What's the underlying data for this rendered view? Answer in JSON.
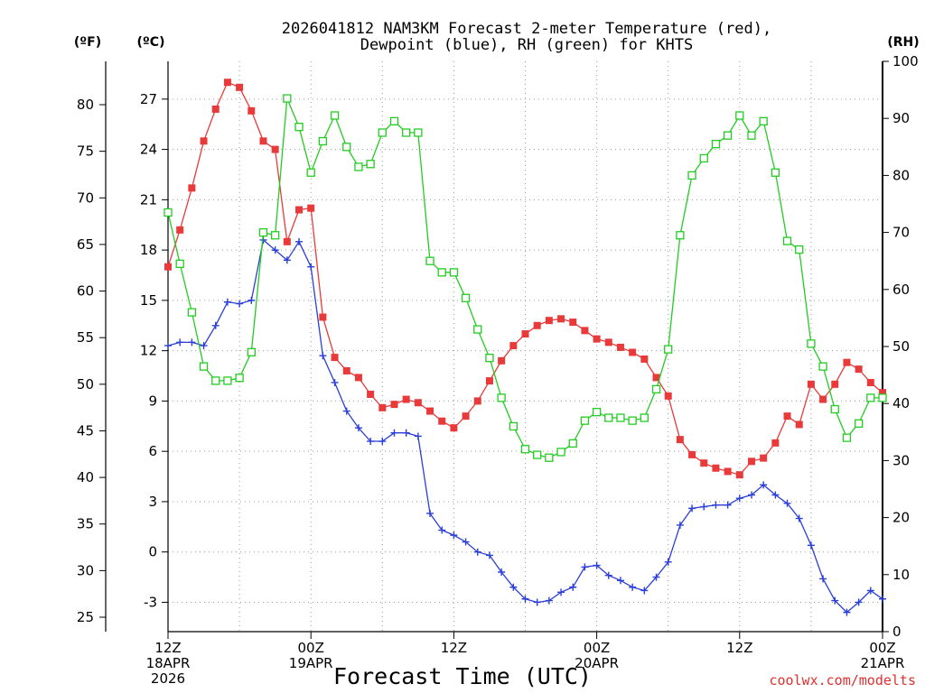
{
  "chart_data": {
    "type": "line",
    "title_line1": "2026041812 NAM3KM Forecast 2-meter Temperature (red),",
    "title_line2": "Dewpoint (blue), RH (green) for KHTS",
    "xlabel": "Forecast Time (UTC)",
    "credit": "coolwx.com/modelts",
    "units": {
      "fahrenheit": "(ºF)",
      "celsius": "(ºC)",
      "rh": "(RH)"
    },
    "x_range_hours": [
      0,
      60
    ],
    "celsius_range": [
      -4.75,
      29.25
    ],
    "rh_range": [
      0,
      100
    ],
    "fahrenheit_ticks": [
      "25",
      "30",
      "35",
      "40",
      "45",
      "50",
      "55",
      "60",
      "65",
      "70",
      "75",
      "80"
    ],
    "celsius_ticks": [
      "-3",
      "0",
      "3",
      "6",
      "9",
      "12",
      "15",
      "18",
      "21",
      "24",
      "27"
    ],
    "rh_ticks": [
      "0",
      "10",
      "20",
      "30",
      "40",
      "50",
      "60",
      "70",
      "80",
      "90",
      "100"
    ],
    "x_ticks": [
      {
        "hour": 0,
        "lines": [
          "12Z",
          "18APR",
          "2026"
        ]
      },
      {
        "hour": 12,
        "lines": [
          "00Z",
          "19APR"
        ]
      },
      {
        "hour": 24,
        "lines": [
          "12Z"
        ]
      },
      {
        "hour": 36,
        "lines": [
          "00Z",
          "20APR"
        ]
      },
      {
        "hour": 48,
        "lines": [
          "12Z"
        ]
      },
      {
        "hour": 60,
        "lines": [
          "00Z",
          "21APR"
        ]
      }
    ],
    "colors": {
      "temperature": "#e83a3a",
      "dewpoint": "#2a3ed8",
      "rh": "#22cc22"
    },
    "series": [
      {
        "name": "Temperature",
        "unit": "C",
        "values": [
          17.0,
          19.2,
          21.7,
          24.5,
          26.4,
          28.0,
          27.7,
          26.3,
          24.5,
          24.0,
          18.5,
          20.4,
          20.5,
          14.0,
          11.6,
          10.8,
          10.4,
          9.4,
          8.6,
          8.8,
          9.1,
          8.9,
          8.4,
          7.8,
          7.4,
          8.1,
          9.0,
          10.2,
          11.4,
          12.3,
          13.0,
          13.5,
          13.8,
          13.9,
          13.7,
          13.2,
          12.7,
          12.5,
          12.2,
          11.9,
          11.5,
          10.4,
          9.3,
          6.7,
          5.8,
          5.3,
          5.0,
          4.8,
          4.6,
          5.4,
          5.6,
          6.5,
          8.1,
          7.6,
          10.0,
          9.1,
          10.0,
          11.3,
          10.9,
          10.1,
          9.5
        ]
      },
      {
        "name": "Dewpoint",
        "unit": "C",
        "values": [
          12.3,
          12.5,
          12.5,
          12.3,
          13.5,
          14.9,
          14.8,
          15.0,
          18.6,
          18.0,
          17.4,
          18.5,
          17.0,
          11.7,
          10.1,
          8.4,
          7.4,
          6.6,
          6.6,
          7.1,
          7.1,
          6.9,
          2.3,
          1.3,
          1.0,
          0.6,
          0.0,
          -0.2,
          -1.2,
          -2.1,
          -2.8,
          -3.0,
          -2.9,
          -2.4,
          -2.1,
          -0.9,
          -0.8,
          -1.4,
          -1.7,
          -2.1,
          -2.3,
          -1.5,
          -0.6,
          1.6,
          2.6,
          2.7,
          2.8,
          2.8,
          3.2,
          3.4,
          4.0,
          3.4,
          2.9,
          2.0,
          0.4,
          -1.6,
          -2.9,
          -3.6,
          -3.0,
          -2.3,
          -2.8
        ]
      },
      {
        "name": "RH",
        "unit": "%",
        "values": [
          73.5,
          64.5,
          56.0,
          46.5,
          44.0,
          44.0,
          44.5,
          49.0,
          70.0,
          69.5,
          93.5,
          88.5,
          80.5,
          86.0,
          90.5,
          85.0,
          81.5,
          82.0,
          87.5,
          89.5,
          87.5,
          87.5,
          65.0,
          63.0,
          63.0,
          58.5,
          53.0,
          48.0,
          41.0,
          36.0,
          32.0,
          31.0,
          30.5,
          31.5,
          33.0,
          37.0,
          38.5,
          37.5,
          37.5,
          37.0,
          37.5,
          42.5,
          49.5,
          69.5,
          80.0,
          83.0,
          85.5,
          87.0,
          90.5,
          87.0,
          89.5,
          80.5,
          68.5,
          67.0,
          50.5,
          46.5,
          39.0,
          34.0,
          36.5,
          41.0,
          41.0
        ]
      }
    ]
  }
}
